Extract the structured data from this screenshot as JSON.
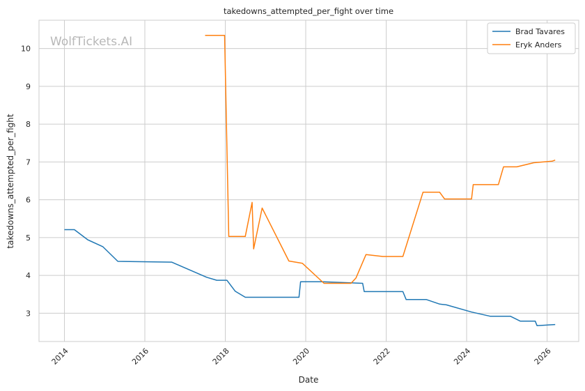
{
  "watermark": "WolfTickets.AI",
  "chart_data": {
    "type": "line",
    "title": "takedowns_attempted_per_fight over time",
    "xlabel": "Date",
    "ylabel": "takedowns_attempted_per_fight",
    "x_ticks": [
      "2014",
      "2016",
      "2018",
      "2020",
      "2022",
      "2024",
      "2026"
    ],
    "y_ticks": [
      3,
      4,
      5,
      6,
      7,
      8,
      9,
      10
    ],
    "xlim": [
      "2013-05-15",
      "2026-10-15"
    ],
    "ylim": [
      2.25,
      10.75
    ],
    "grid": true,
    "legend_position": "top-right",
    "series": [
      {
        "name": "Brad Tavares",
        "color": "#1f77b4",
        "points": [
          [
            "2014-01-01",
            5.21
          ],
          [
            "2014-04-01",
            5.21
          ],
          [
            "2014-08-01",
            4.94
          ],
          [
            "2014-12-15",
            4.76
          ],
          [
            "2015-05-01",
            4.37
          ],
          [
            "2016-09-01",
            4.35
          ],
          [
            "2017-07-15",
            3.95
          ],
          [
            "2017-10-15",
            3.87
          ],
          [
            "2018-01-15",
            3.87
          ],
          [
            "2018-04-01",
            3.58
          ],
          [
            "2018-07-01",
            3.42
          ],
          [
            "2019-11-01",
            3.42
          ],
          [
            "2019-11-15",
            3.83
          ],
          [
            "2020-06-01",
            3.83
          ],
          [
            "2021-06-01",
            3.79
          ],
          [
            "2021-06-15",
            3.57
          ],
          [
            "2022-06-01",
            3.57
          ],
          [
            "2022-07-01",
            3.36
          ],
          [
            "2023-01-01",
            3.36
          ],
          [
            "2023-05-01",
            3.24
          ],
          [
            "2023-07-01",
            3.22
          ],
          [
            "2024-02-15",
            3.03
          ],
          [
            "2024-08-01",
            2.92
          ],
          [
            "2025-02-01",
            2.92
          ],
          [
            "2025-05-01",
            2.79
          ],
          [
            "2025-09-15",
            2.79
          ],
          [
            "2025-10-01",
            2.67
          ],
          [
            "2026-03-15",
            2.7
          ]
        ]
      },
      {
        "name": "Eryk Anders",
        "color": "#ff7f0e",
        "points": [
          [
            "2017-07-01",
            10.35
          ],
          [
            "2017-12-25",
            10.35
          ],
          [
            "2018-02-01",
            5.03
          ],
          [
            "2018-07-01",
            5.03
          ],
          [
            "2018-09-01",
            5.93
          ],
          [
            "2018-09-15",
            4.7
          ],
          [
            "2018-12-01",
            5.78
          ],
          [
            "2019-08-01",
            4.38
          ],
          [
            "2019-12-01",
            4.32
          ],
          [
            "2020-06-15",
            3.79
          ],
          [
            "2021-02-15",
            3.79
          ],
          [
            "2021-04-01",
            3.93
          ],
          [
            "2021-07-01",
            4.55
          ],
          [
            "2021-12-01",
            4.5
          ],
          [
            "2022-06-01",
            4.5
          ],
          [
            "2022-12-01",
            6.2
          ],
          [
            "2023-05-01",
            6.2
          ],
          [
            "2023-06-15",
            6.02
          ],
          [
            "2024-02-15",
            6.02
          ],
          [
            "2024-03-01",
            6.4
          ],
          [
            "2024-10-15",
            6.4
          ],
          [
            "2024-12-01",
            6.87
          ],
          [
            "2025-04-01",
            6.87
          ],
          [
            "2025-09-01",
            6.98
          ],
          [
            "2026-02-15",
            7.02
          ],
          [
            "2026-03-15",
            7.05
          ]
        ]
      }
    ]
  }
}
